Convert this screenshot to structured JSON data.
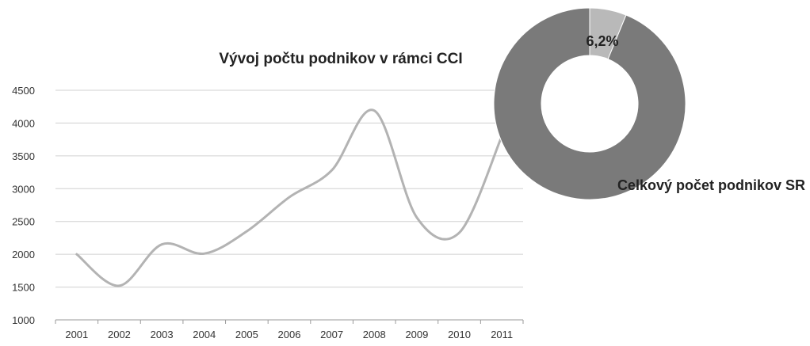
{
  "chart_data": [
    {
      "type": "line",
      "title": "Vývoj počtu podnikov v rámci CCI",
      "xlabel": "",
      "ylabel": "",
      "categories": [
        "2001",
        "2002",
        "2003",
        "2004",
        "2005",
        "2006",
        "2007",
        "2008",
        "2009",
        "2010",
        "2011"
      ],
      "series": [
        {
          "values": [
            2000,
            1520,
            2150,
            2010,
            2350,
            2870,
            3280,
            4190,
            2560,
            2330,
            3800
          ]
        }
      ],
      "ylim": [
        1000,
        4500
      ],
      "yticks": [
        "1000",
        "1500",
        "2000",
        "2500",
        "3000",
        "3500",
        "4000",
        "4500"
      ],
      "grid": true,
      "line_color": "#b3b3b3",
      "grid_color": "#d0d0d0"
    },
    {
      "type": "pie",
      "style": "donut",
      "slices": [
        {
          "label": "6,2%",
          "value": 6.2,
          "color": "#b9b9b9"
        },
        {
          "label": "Celkový počet podnikov SR",
          "value": 93.8,
          "color": "#7a7a7a"
        }
      ]
    }
  ]
}
